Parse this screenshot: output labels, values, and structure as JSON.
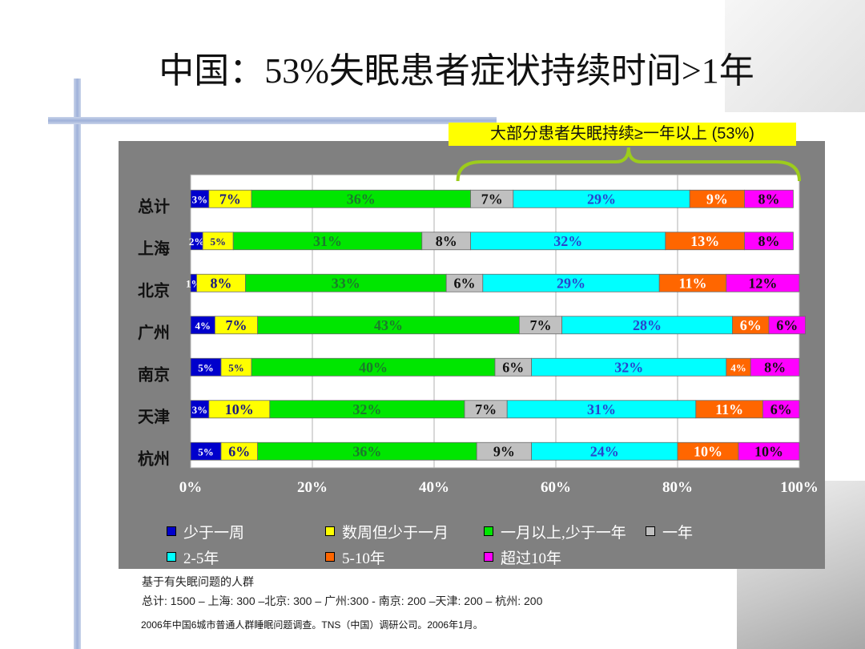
{
  "slide": {
    "title": "中国：53%失眠患者症状持续时间>1年",
    "callout": "大部分患者失眠持续≥一年以上 (53%)",
    "note_line1": "基于有失眠问题的人群",
    "note_line2": "总计: 1500 – 上海: 300 –北京: 300 – 广州:300   - 南京: 200 –天津: 200 – 杭州: 200",
    "source": "2006年中国6城市普通人群睡眠问题调查。TNS（中国）调研公司。2006年1月。"
  },
  "chart_data": {
    "type": "bar",
    "orientation": "horizontal",
    "stacked": true,
    "categories": [
      "总计",
      "上海",
      "北京",
      "广州",
      "南京",
      "天津",
      "杭州"
    ],
    "series": [
      {
        "name": "少于一周",
        "color": "#0000cc",
        "label_color": "#ffffff",
        "values": [
          3,
          2,
          1,
          4,
          5,
          3,
          5
        ]
      },
      {
        "name": "数周但少于一月",
        "color": "#ffff00",
        "label_color": "#1a1a80",
        "values": [
          7,
          5,
          8,
          7,
          5,
          10,
          6
        ]
      },
      {
        "name": "一月以上,少于一年",
        "color": "#00e600",
        "label_color": "#1c7a2c",
        "values": [
          36,
          31,
          33,
          43,
          40,
          32,
          36
        ]
      },
      {
        "name": "一年",
        "color": "#c0c0c0",
        "label_color": "#111111",
        "values": [
          7,
          8,
          6,
          7,
          6,
          7,
          9
        ]
      },
      {
        "name": "2-5年",
        "color": "#00ffff",
        "label_color": "#2a44cc",
        "values": [
          29,
          32,
          29,
          28,
          32,
          31,
          24
        ]
      },
      {
        "name": "5-10年",
        "color": "#ff6600",
        "label_color": "#ffffff",
        "values": [
          9,
          13,
          11,
          6,
          4,
          11,
          10
        ]
      },
      {
        "name": "超过10年",
        "color": "#ff00ff",
        "label_color": "#111111",
        "values": [
          8,
          8,
          12,
          6,
          8,
          6,
          10
        ]
      }
    ],
    "data_labels": [
      [
        "3%",
        "7%",
        "36%",
        "7%",
        "29%",
        "9%",
        "8%"
      ],
      [
        "2%",
        "5%",
        "31%",
        "8%",
        "32%",
        "13%",
        "8%"
      ],
      [
        "1%",
        "8%",
        "33%",
        "6%",
        "29%",
        "11%",
        "12%"
      ],
      [
        "4%",
        "7%",
        "43%",
        "7%",
        "28%",
        "6%",
        "6%"
      ],
      [
        "5%",
        "5%",
        "40%",
        "6%",
        "32%",
        "4%",
        "8%"
      ],
      [
        "3%",
        "10%",
        "32%",
        "7%",
        "31%",
        "11%",
        "6%"
      ],
      [
        "5%",
        "6%",
        "36%",
        "9%",
        "24%",
        "10%",
        "10%"
      ]
    ],
    "x_ticks": [
      "0%",
      "20%",
      "40%",
      "60%",
      "80%",
      "100%"
    ],
    "xlim": [
      0,
      100
    ],
    "grid": true,
    "legend_position": "bottom"
  }
}
